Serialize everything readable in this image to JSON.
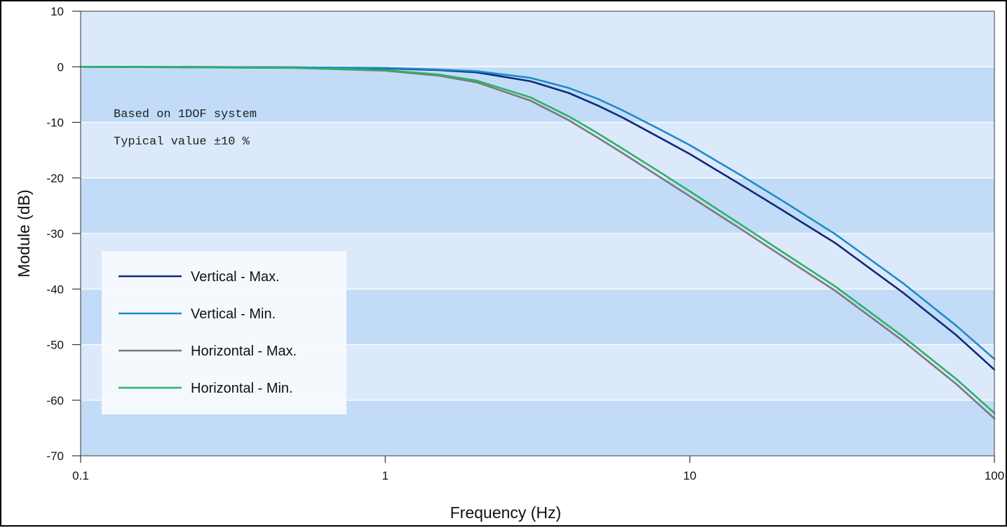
{
  "chart_data": {
    "type": "line",
    "title": "",
    "xlabel": "Frequency (Hz)",
    "ylabel": "Module (dB)",
    "xscale": "log",
    "xlim": [
      0.1,
      100
    ],
    "ylim": [
      -70,
      10
    ],
    "x_ticks": [
      0.1,
      1,
      10,
      100
    ],
    "x_tick_labels": [
      "0.1",
      "1",
      "10",
      "100"
    ],
    "y_ticks": [
      10,
      0,
      -10,
      -20,
      -30,
      -40,
      -50,
      -60,
      -70
    ],
    "y_tick_labels": [
      "10",
      "0",
      "-10",
      "-20",
      "-30",
      "-40",
      "-50",
      "-60",
      "-70"
    ],
    "grid": true,
    "background_bands": [
      "#dbe9fb",
      "#c2dcf8"
    ],
    "annotations": [
      "Based on 1DOF system",
      "Typical value ±10 %"
    ],
    "legend_position": "lower-left",
    "series": [
      {
        "name": "Vertical - Max.",
        "color": "#0d2b78",
        "x": [
          0.1,
          0.5,
          1,
          1.5,
          2,
          3,
          4,
          5,
          6,
          8,
          10,
          15,
          20,
          30,
          50,
          75,
          100
        ],
        "y": [
          0,
          -0.1,
          -0.3,
          -0.6,
          -1.0,
          -2.6,
          -4.7,
          -7.0,
          -9.1,
          -12.8,
          -15.7,
          -21.5,
          -25.7,
          -31.7,
          -40.6,
          -48.3,
          -54.5
        ]
      },
      {
        "name": "Vertical - Min.",
        "color": "#1b8cc8",
        "x": [
          0.1,
          0.5,
          1,
          1.5,
          2,
          3,
          4,
          5,
          6,
          8,
          10,
          15,
          20,
          30,
          50,
          75,
          100
        ],
        "y": [
          0,
          -0.1,
          -0.2,
          -0.5,
          -0.8,
          -2.0,
          -3.8,
          -5.8,
          -7.8,
          -11.3,
          -14.1,
          -19.8,
          -24.0,
          -30.1,
          -38.9,
          -46.6,
          -52.6
        ]
      },
      {
        "name": "Horizontal - Max.",
        "color": "#7a7a7a",
        "x": [
          0.1,
          0.5,
          1,
          1.5,
          2,
          3,
          4,
          5,
          6,
          8,
          10,
          15,
          20,
          30,
          50,
          75,
          100
        ],
        "y": [
          0,
          -0.2,
          -0.7,
          -1.6,
          -2.8,
          -6.1,
          -9.6,
          -12.8,
          -15.5,
          -19.9,
          -23.3,
          -29.5,
          -34.0,
          -40.3,
          -49.3,
          -57.1,
          -63.3
        ]
      },
      {
        "name": "Horizontal - Min.",
        "color": "#2fb067",
        "x": [
          0.1,
          0.5,
          1,
          1.5,
          2,
          3,
          4,
          5,
          6,
          8,
          10,
          15,
          20,
          30,
          50,
          75,
          100
        ],
        "y": [
          0,
          -0.2,
          -0.6,
          -1.4,
          -2.5,
          -5.5,
          -8.9,
          -12.0,
          -14.7,
          -19.0,
          -22.4,
          -28.7,
          -33.2,
          -39.5,
          -48.5,
          -56.2,
          -62.3
        ]
      }
    ]
  }
}
